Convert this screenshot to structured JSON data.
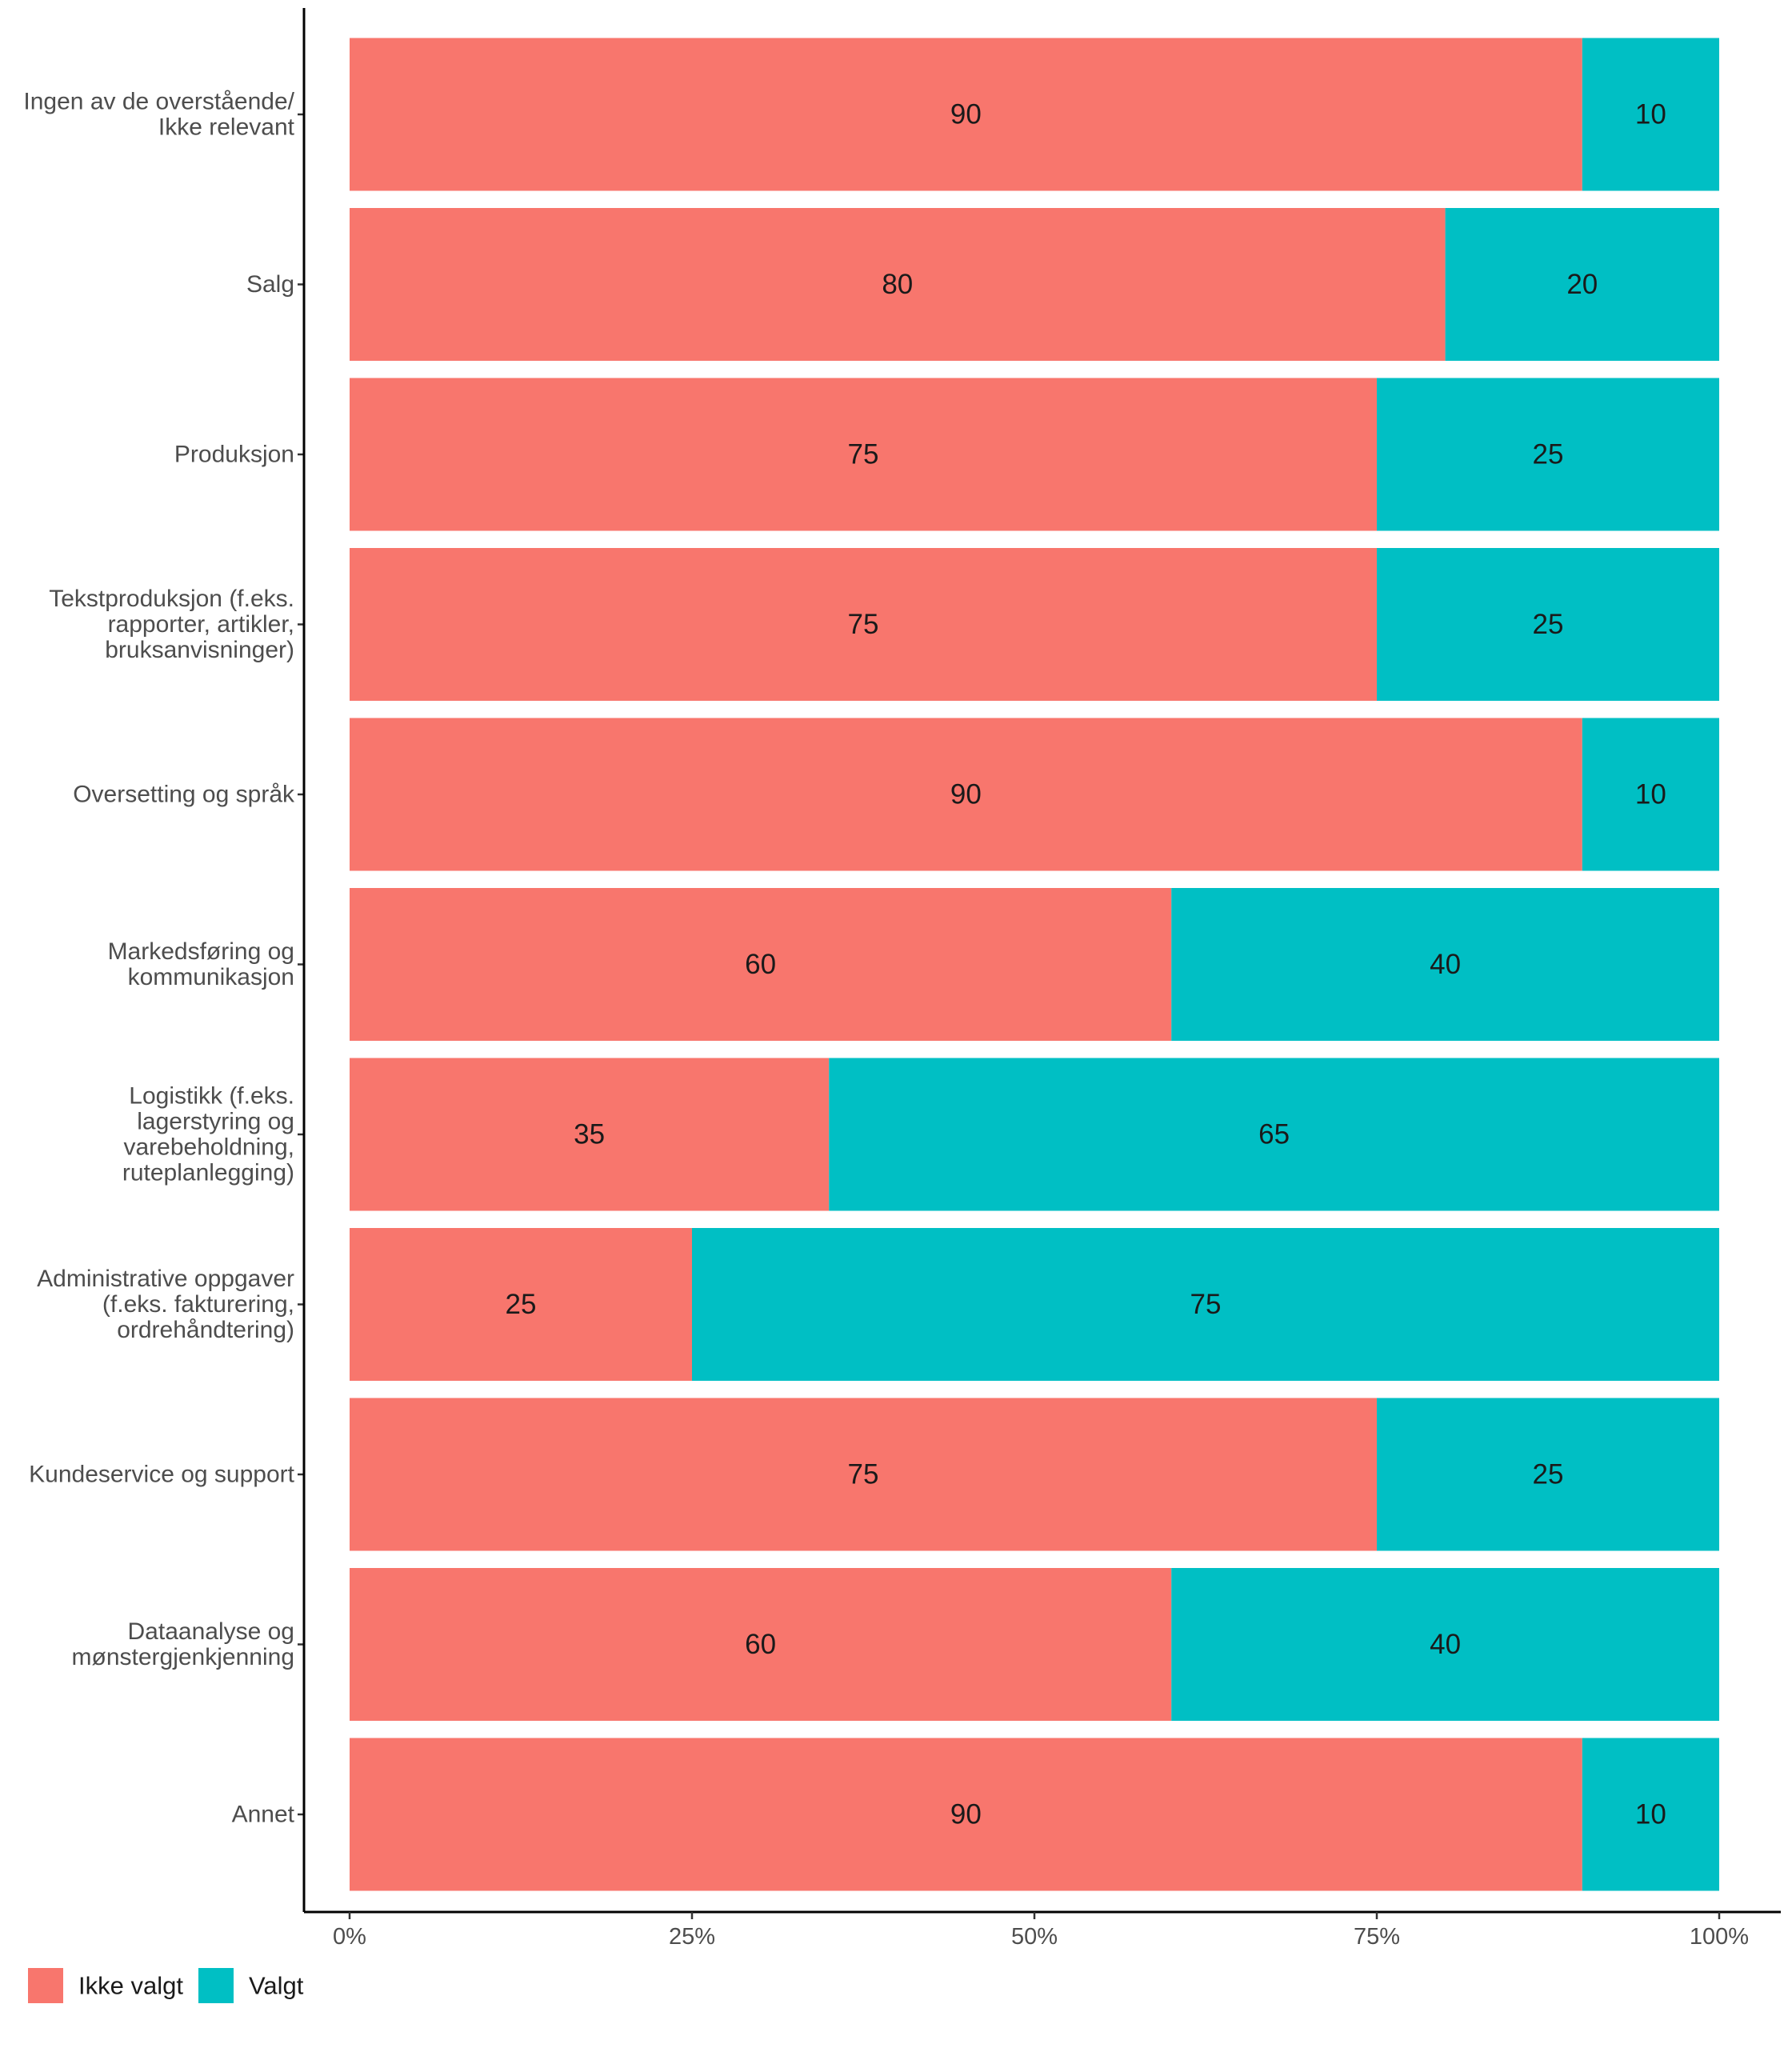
{
  "chart_data": {
    "type": "bar",
    "orientation": "horizontal",
    "stacked": true,
    "categories": [
      "Ingen av de overstående/\nIkke relevant",
      "Salg",
      "Produksjon",
      "Tekstproduksjon (f.eks.\nrapporter, artikler,\nbruksanvisninger)",
      "Oversetting og språk",
      "Markedsføring og\nkommunikasjon",
      "Logistikk (f.eks.\nlagerstyring og\nvarebeholdning,\nruteplanlegging)",
      "Administrative oppgaver\n(f.eks. fakturering,\nordrehåndtering)",
      "Kundeservice og support",
      "Dataanalyse og\nmønstergjenkjenning",
      "Annet"
    ],
    "series": [
      {
        "name": "Ikke valgt",
        "color": "#F8766D",
        "values": [
          90,
          80,
          75,
          75,
          90,
          60,
          35,
          25,
          75,
          60,
          90
        ]
      },
      {
        "name": "Valgt",
        "color": "#00BFC4",
        "values": [
          10,
          20,
          25,
          25,
          10,
          40,
          65,
          75,
          25,
          40,
          10
        ]
      }
    ],
    "xlim": [
      0,
      100
    ],
    "x_ticks": [
      0,
      25,
      50,
      75,
      100
    ],
    "x_tick_labels": [
      "0%",
      "25%",
      "50%",
      "75%",
      "100%"
    ],
    "grid": false,
    "legend_position": "bottom-left"
  }
}
